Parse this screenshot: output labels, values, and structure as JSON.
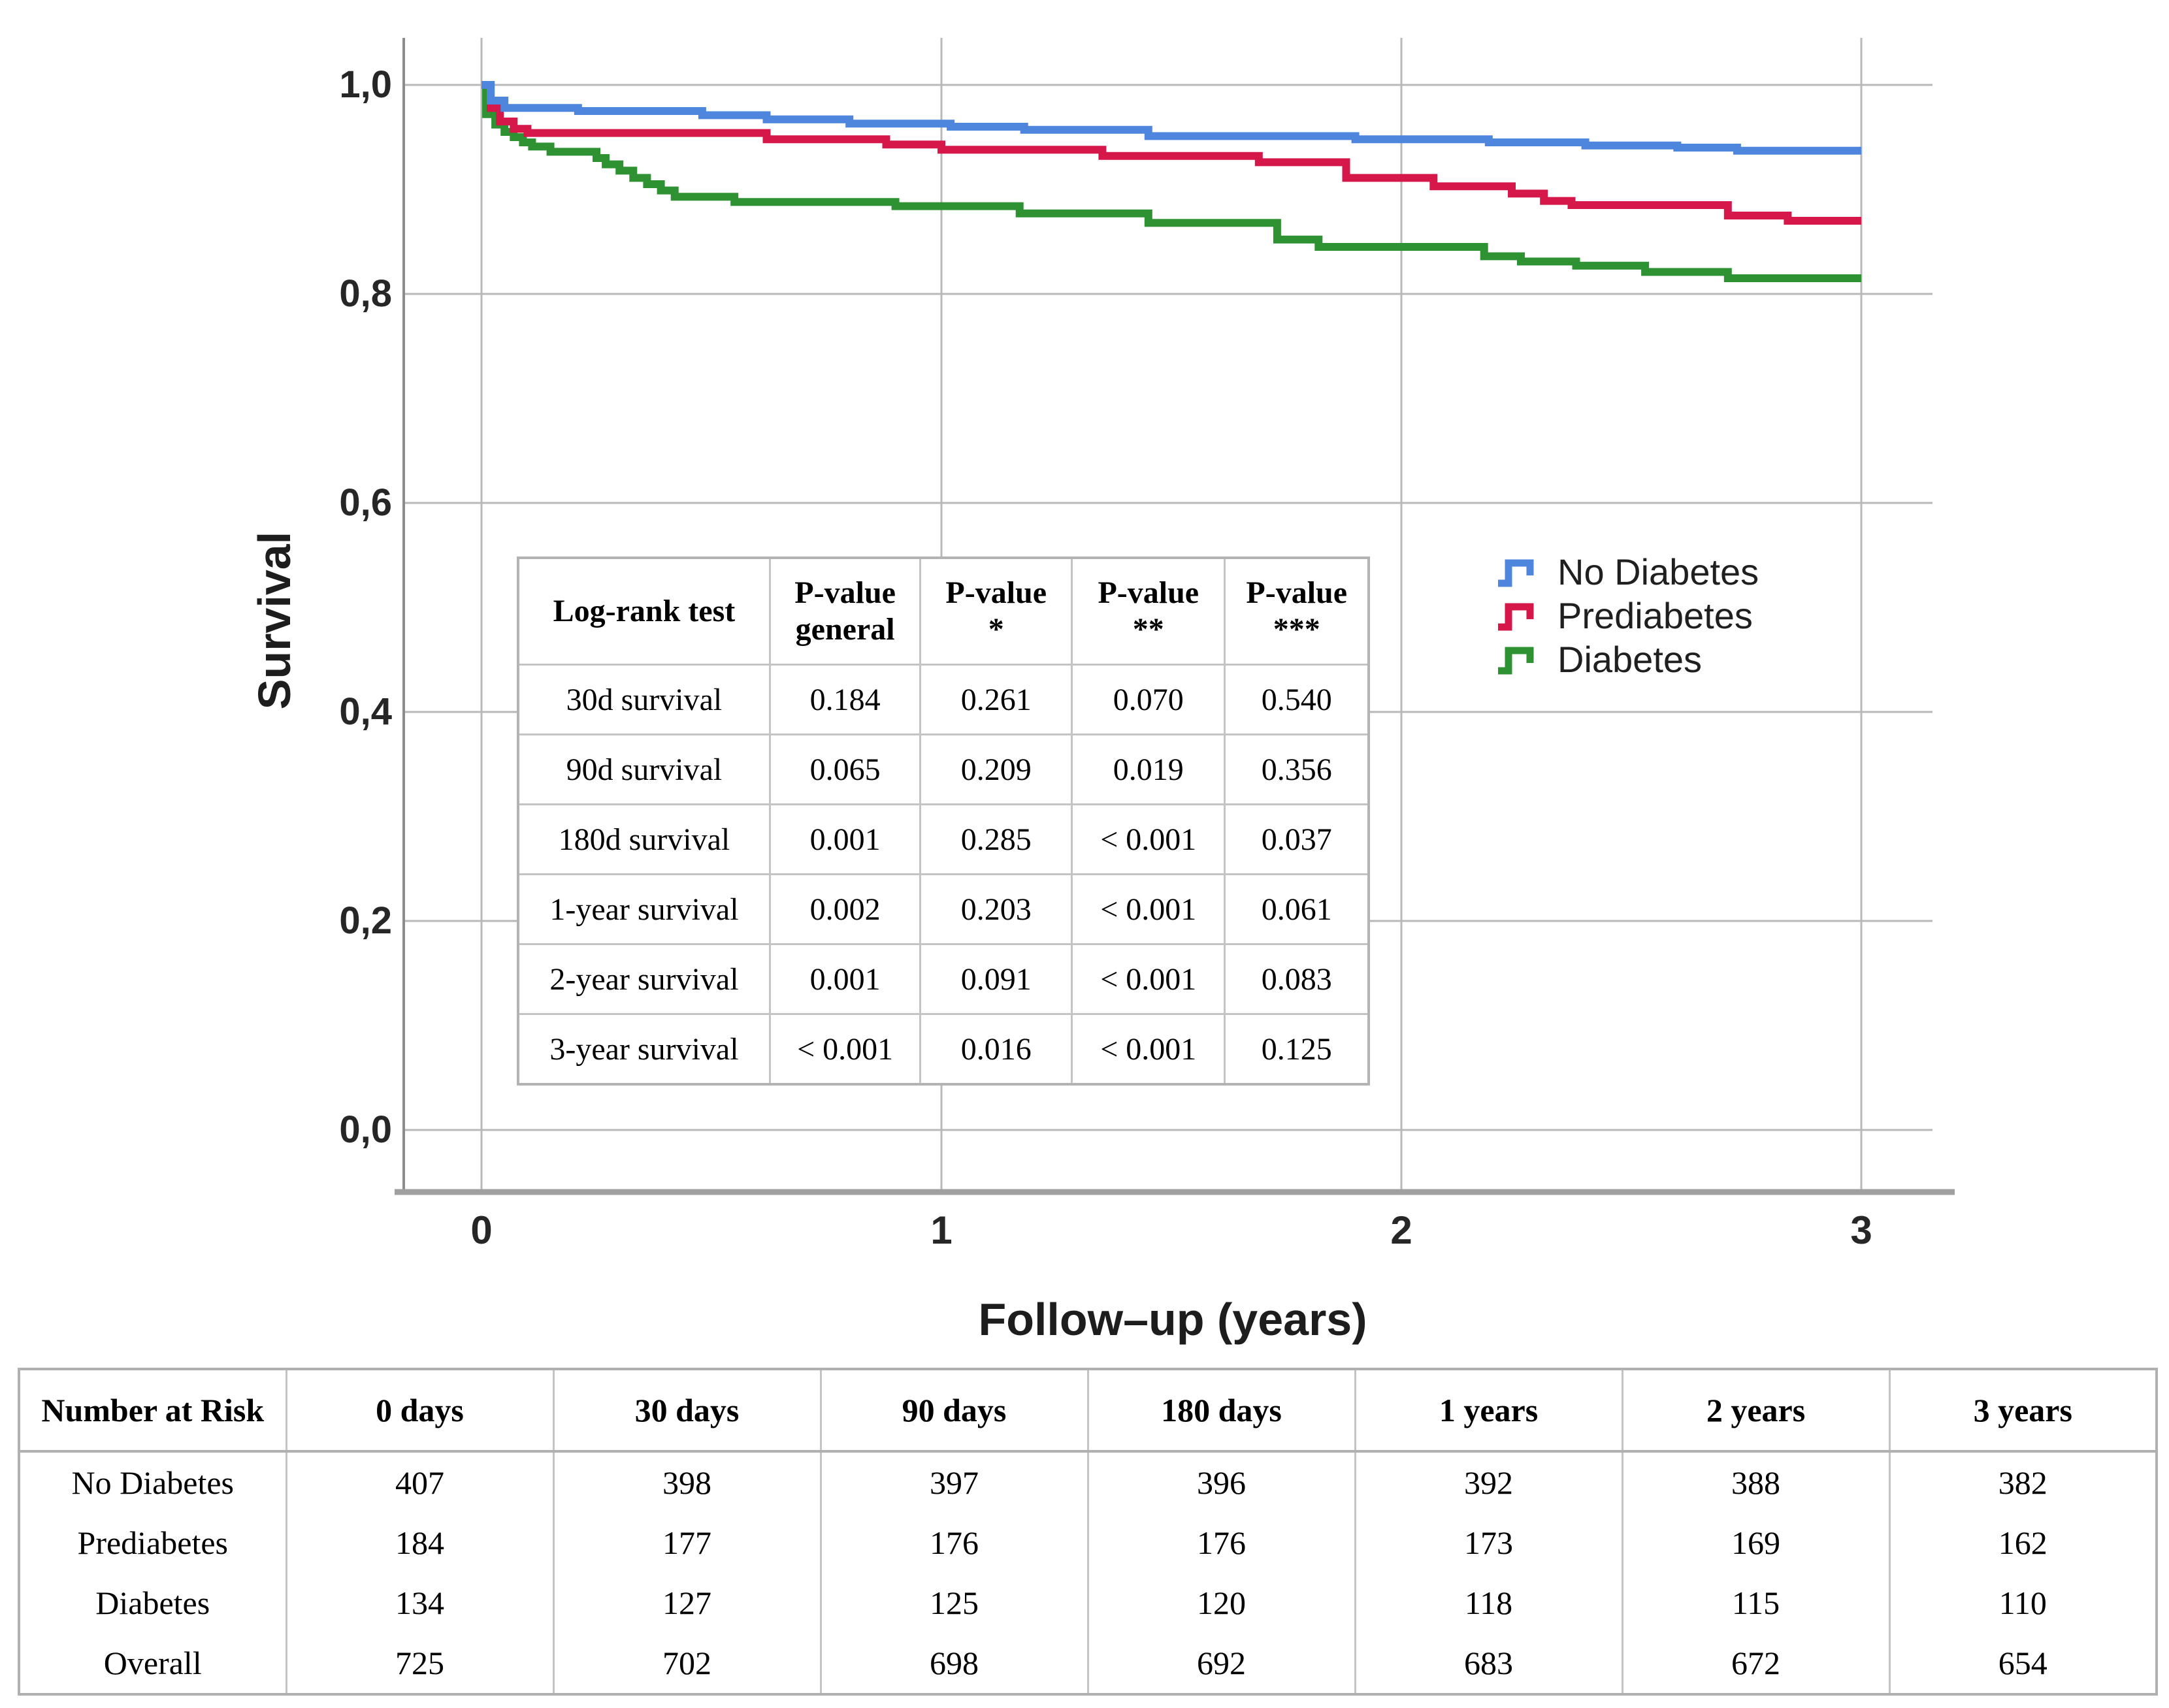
{
  "figure": {
    "y_axis": {
      "title": "Survival",
      "ticks": [
        "1,0",
        "0,8",
        "0,6",
        "0,4",
        "0,2",
        "0,0"
      ]
    },
    "x_axis": {
      "title": "Follow–up (years)",
      "ticks": [
        "0",
        "1",
        "2",
        "3"
      ]
    },
    "legend": [
      {
        "label": "No Diabetes",
        "color": "#4E86DD"
      },
      {
        "label": "Prediabetes",
        "color": "#D5174A"
      },
      {
        "label": "Diabetes",
        "color": "#2F9232"
      }
    ]
  },
  "chart_data": {
    "type": "line",
    "subtype": "kaplan-meier-step",
    "title": "",
    "xlabel": "Follow–up (years)",
    "ylabel": "Survival",
    "xlim": [
      0,
      3
    ],
    "ylim": [
      0.0,
      1.0
    ],
    "x_tick_values": [
      0,
      1,
      2,
      3
    ],
    "y_tick_values": [
      1.0,
      0.8,
      0.6,
      0.4,
      0.2,
      0.0
    ],
    "grid": true,
    "legend_position": "right-center",
    "series": [
      {
        "name": "No Diabetes",
        "color": "#4E86DD",
        "points": [
          [
            0,
            1.0
          ],
          [
            0.02,
            0.985
          ],
          [
            0.05,
            0.978
          ],
          [
            0.21,
            0.975
          ],
          [
            0.48,
            0.971
          ],
          [
            0.62,
            0.967
          ],
          [
            0.8,
            0.963
          ],
          [
            1.02,
            0.96
          ],
          [
            1.18,
            0.957
          ],
          [
            1.45,
            0.951
          ],
          [
            1.9,
            0.948
          ],
          [
            2.19,
            0.945
          ],
          [
            2.4,
            0.942
          ],
          [
            2.6,
            0.94
          ],
          [
            2.73,
            0.937
          ],
          [
            3.0,
            0.937
          ]
        ]
      },
      {
        "name": "Prediabetes",
        "color": "#D5174A",
        "points": [
          [
            0,
            1.0
          ],
          [
            0.02,
            0.978
          ],
          [
            0.04,
            0.965
          ],
          [
            0.07,
            0.958
          ],
          [
            0.1,
            0.954
          ],
          [
            0.62,
            0.948
          ],
          [
            0.88,
            0.943
          ],
          [
            1.0,
            0.938
          ],
          [
            1.35,
            0.932
          ],
          [
            1.69,
            0.926
          ],
          [
            1.88,
            0.911
          ],
          [
            2.07,
            0.903
          ],
          [
            2.24,
            0.896
          ],
          [
            2.31,
            0.889
          ],
          [
            2.37,
            0.885
          ],
          [
            2.71,
            0.875
          ],
          [
            2.84,
            0.87
          ],
          [
            3.0,
            0.87
          ]
        ]
      },
      {
        "name": "Diabetes",
        "color": "#2F9232",
        "points": [
          [
            0,
            1.0
          ],
          [
            0.01,
            0.972
          ],
          [
            0.03,
            0.962
          ],
          [
            0.05,
            0.955
          ],
          [
            0.07,
            0.95
          ],
          [
            0.09,
            0.945
          ],
          [
            0.11,
            0.941
          ],
          [
            0.15,
            0.936
          ],
          [
            0.25,
            0.93
          ],
          [
            0.27,
            0.924
          ],
          [
            0.3,
            0.918
          ],
          [
            0.33,
            0.911
          ],
          [
            0.36,
            0.905
          ],
          [
            0.39,
            0.899
          ],
          [
            0.42,
            0.893
          ],
          [
            0.55,
            0.888
          ],
          [
            0.9,
            0.884
          ],
          [
            1.17,
            0.877
          ],
          [
            1.45,
            0.868
          ],
          [
            1.73,
            0.852
          ],
          [
            1.82,
            0.845
          ],
          [
            2.18,
            0.836
          ],
          [
            2.26,
            0.831
          ],
          [
            2.38,
            0.827
          ],
          [
            2.53,
            0.821
          ],
          [
            2.71,
            0.815
          ],
          [
            3.0,
            0.815
          ]
        ]
      }
    ]
  },
  "logrank_table": {
    "headers": [
      "Log-rank test",
      "P-value\ngeneral",
      "P-value\n*",
      "P-value\n**",
      "P-value\n***"
    ],
    "rows": [
      [
        "30d survival",
        "0.184",
        "0.261",
        "0.070",
        "0.540"
      ],
      [
        "90d survival",
        "0.065",
        "0.209",
        "0.019",
        "0.356"
      ],
      [
        "180d survival",
        "0.001",
        "0.285",
        "< 0.001",
        "0.037"
      ],
      [
        "1-year survival",
        "0.002",
        "0.203",
        "< 0.001",
        "0.061"
      ],
      [
        "2-year survival",
        "0.001",
        "0.091",
        "< 0.001",
        "0.083"
      ],
      [
        "3-year survival",
        "< 0.001",
        "0.016",
        "< 0.001",
        "0.125"
      ]
    ]
  },
  "risk_table": {
    "headers": [
      "Number at Risk",
      "0 days",
      "30 days",
      "90 days",
      "180 days",
      "1 years",
      "2 years",
      "3 years"
    ],
    "rows": [
      [
        "No Diabetes",
        "407",
        "398",
        "397",
        "396",
        "392",
        "388",
        "382"
      ],
      [
        "Prediabetes",
        "184",
        "177",
        "176",
        "176",
        "173",
        "169",
        "162"
      ],
      [
        "Diabetes",
        "134",
        "127",
        "125",
        "120",
        "118",
        "115",
        "110"
      ],
      [
        "Overall",
        "725",
        "702",
        "698",
        "692",
        "683",
        "672",
        "654"
      ]
    ]
  }
}
